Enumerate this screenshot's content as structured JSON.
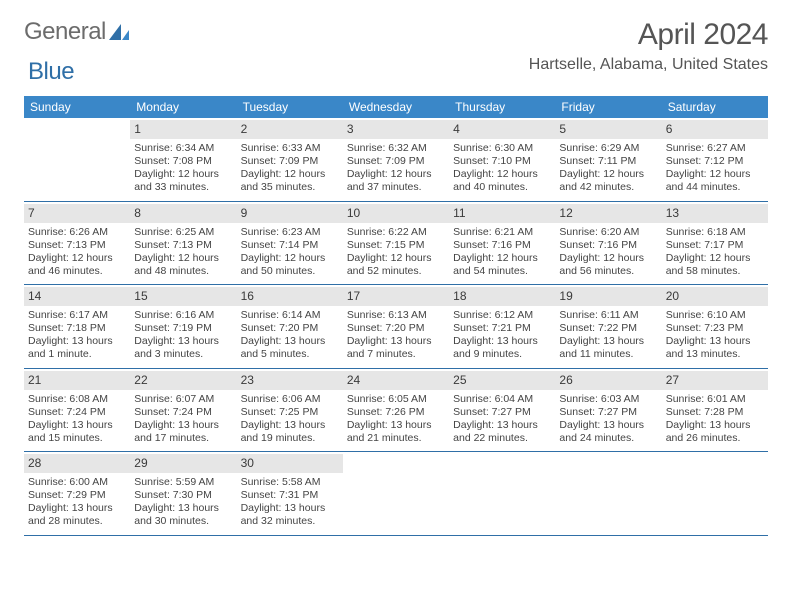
{
  "brand": {
    "word1": "General",
    "word2": "Blue"
  },
  "title": "April 2024",
  "location": "Hartselle, Alabama, United States",
  "colors": {
    "header_bg": "#3a87c8",
    "header_text": "#ffffff",
    "daynum_bg": "#e6e6e6",
    "week_border": "#2f6fa7",
    "logo_gray": "#6c6c6c",
    "logo_blue": "#2f6fa7",
    "body_text": "#444444"
  },
  "weekdays": [
    "Sunday",
    "Monday",
    "Tuesday",
    "Wednesday",
    "Thursday",
    "Friday",
    "Saturday"
  ],
  "weeks": [
    [
      {
        "day": "",
        "sunrise": "",
        "sunset": "",
        "daylight": ""
      },
      {
        "day": "1",
        "sunrise": "Sunrise: 6:34 AM",
        "sunset": "Sunset: 7:08 PM",
        "daylight": "Daylight: 12 hours and 33 minutes."
      },
      {
        "day": "2",
        "sunrise": "Sunrise: 6:33 AM",
        "sunset": "Sunset: 7:09 PM",
        "daylight": "Daylight: 12 hours and 35 minutes."
      },
      {
        "day": "3",
        "sunrise": "Sunrise: 6:32 AM",
        "sunset": "Sunset: 7:09 PM",
        "daylight": "Daylight: 12 hours and 37 minutes."
      },
      {
        "day": "4",
        "sunrise": "Sunrise: 6:30 AM",
        "sunset": "Sunset: 7:10 PM",
        "daylight": "Daylight: 12 hours and 40 minutes."
      },
      {
        "day": "5",
        "sunrise": "Sunrise: 6:29 AM",
        "sunset": "Sunset: 7:11 PM",
        "daylight": "Daylight: 12 hours and 42 minutes."
      },
      {
        "day": "6",
        "sunrise": "Sunrise: 6:27 AM",
        "sunset": "Sunset: 7:12 PM",
        "daylight": "Daylight: 12 hours and 44 minutes."
      }
    ],
    [
      {
        "day": "7",
        "sunrise": "Sunrise: 6:26 AM",
        "sunset": "Sunset: 7:13 PM",
        "daylight": "Daylight: 12 hours and 46 minutes."
      },
      {
        "day": "8",
        "sunrise": "Sunrise: 6:25 AM",
        "sunset": "Sunset: 7:13 PM",
        "daylight": "Daylight: 12 hours and 48 minutes."
      },
      {
        "day": "9",
        "sunrise": "Sunrise: 6:23 AM",
        "sunset": "Sunset: 7:14 PM",
        "daylight": "Daylight: 12 hours and 50 minutes."
      },
      {
        "day": "10",
        "sunrise": "Sunrise: 6:22 AM",
        "sunset": "Sunset: 7:15 PM",
        "daylight": "Daylight: 12 hours and 52 minutes."
      },
      {
        "day": "11",
        "sunrise": "Sunrise: 6:21 AM",
        "sunset": "Sunset: 7:16 PM",
        "daylight": "Daylight: 12 hours and 54 minutes."
      },
      {
        "day": "12",
        "sunrise": "Sunrise: 6:20 AM",
        "sunset": "Sunset: 7:16 PM",
        "daylight": "Daylight: 12 hours and 56 minutes."
      },
      {
        "day": "13",
        "sunrise": "Sunrise: 6:18 AM",
        "sunset": "Sunset: 7:17 PM",
        "daylight": "Daylight: 12 hours and 58 minutes."
      }
    ],
    [
      {
        "day": "14",
        "sunrise": "Sunrise: 6:17 AM",
        "sunset": "Sunset: 7:18 PM",
        "daylight": "Daylight: 13 hours and 1 minute."
      },
      {
        "day": "15",
        "sunrise": "Sunrise: 6:16 AM",
        "sunset": "Sunset: 7:19 PM",
        "daylight": "Daylight: 13 hours and 3 minutes."
      },
      {
        "day": "16",
        "sunrise": "Sunrise: 6:14 AM",
        "sunset": "Sunset: 7:20 PM",
        "daylight": "Daylight: 13 hours and 5 minutes."
      },
      {
        "day": "17",
        "sunrise": "Sunrise: 6:13 AM",
        "sunset": "Sunset: 7:20 PM",
        "daylight": "Daylight: 13 hours and 7 minutes."
      },
      {
        "day": "18",
        "sunrise": "Sunrise: 6:12 AM",
        "sunset": "Sunset: 7:21 PM",
        "daylight": "Daylight: 13 hours and 9 minutes."
      },
      {
        "day": "19",
        "sunrise": "Sunrise: 6:11 AM",
        "sunset": "Sunset: 7:22 PM",
        "daylight": "Daylight: 13 hours and 11 minutes."
      },
      {
        "day": "20",
        "sunrise": "Sunrise: 6:10 AM",
        "sunset": "Sunset: 7:23 PM",
        "daylight": "Daylight: 13 hours and 13 minutes."
      }
    ],
    [
      {
        "day": "21",
        "sunrise": "Sunrise: 6:08 AM",
        "sunset": "Sunset: 7:24 PM",
        "daylight": "Daylight: 13 hours and 15 minutes."
      },
      {
        "day": "22",
        "sunrise": "Sunrise: 6:07 AM",
        "sunset": "Sunset: 7:24 PM",
        "daylight": "Daylight: 13 hours and 17 minutes."
      },
      {
        "day": "23",
        "sunrise": "Sunrise: 6:06 AM",
        "sunset": "Sunset: 7:25 PM",
        "daylight": "Daylight: 13 hours and 19 minutes."
      },
      {
        "day": "24",
        "sunrise": "Sunrise: 6:05 AM",
        "sunset": "Sunset: 7:26 PM",
        "daylight": "Daylight: 13 hours and 21 minutes."
      },
      {
        "day": "25",
        "sunrise": "Sunrise: 6:04 AM",
        "sunset": "Sunset: 7:27 PM",
        "daylight": "Daylight: 13 hours and 22 minutes."
      },
      {
        "day": "26",
        "sunrise": "Sunrise: 6:03 AM",
        "sunset": "Sunset: 7:27 PM",
        "daylight": "Daylight: 13 hours and 24 minutes."
      },
      {
        "day": "27",
        "sunrise": "Sunrise: 6:01 AM",
        "sunset": "Sunset: 7:28 PM",
        "daylight": "Daylight: 13 hours and 26 minutes."
      }
    ],
    [
      {
        "day": "28",
        "sunrise": "Sunrise: 6:00 AM",
        "sunset": "Sunset: 7:29 PM",
        "daylight": "Daylight: 13 hours and 28 minutes."
      },
      {
        "day": "29",
        "sunrise": "Sunrise: 5:59 AM",
        "sunset": "Sunset: 7:30 PM",
        "daylight": "Daylight: 13 hours and 30 minutes."
      },
      {
        "day": "30",
        "sunrise": "Sunrise: 5:58 AM",
        "sunset": "Sunset: 7:31 PM",
        "daylight": "Daylight: 13 hours and 32 minutes."
      },
      {
        "day": "",
        "sunrise": "",
        "sunset": "",
        "daylight": ""
      },
      {
        "day": "",
        "sunrise": "",
        "sunset": "",
        "daylight": ""
      },
      {
        "day": "",
        "sunrise": "",
        "sunset": "",
        "daylight": ""
      },
      {
        "day": "",
        "sunrise": "",
        "sunset": "",
        "daylight": ""
      }
    ]
  ]
}
